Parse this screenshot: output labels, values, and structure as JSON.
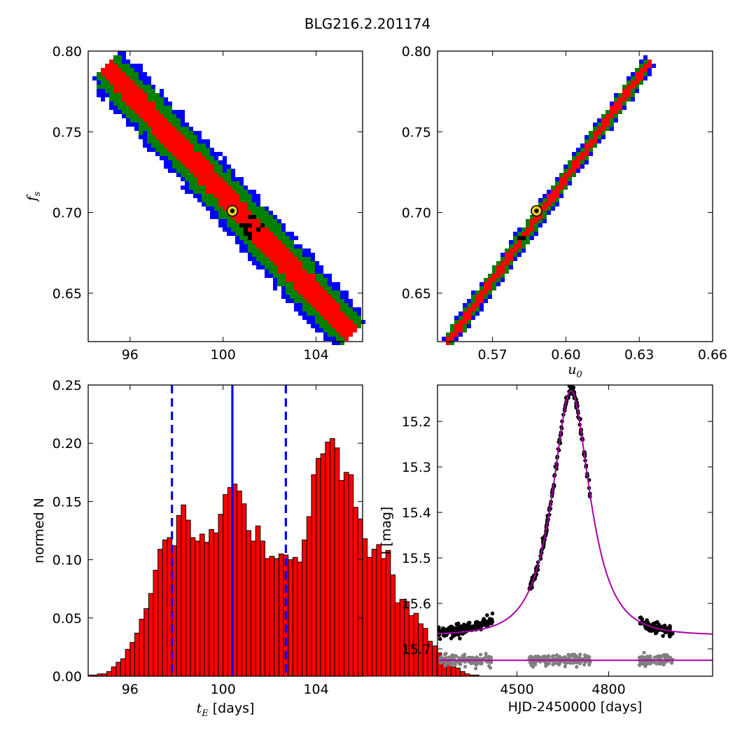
{
  "figure": {
    "title": "BLG216.2.201174"
  },
  "chart_data": [
    {
      "type": "heatmap",
      "panel": "top-left",
      "xlabel": "",
      "ylabel": "f_s",
      "xlim": [
        94.2,
        106.0
      ],
      "ylim": [
        0.62,
        0.8
      ],
      "xticks": [
        96,
        100,
        104
      ],
      "yticks": [
        0.65,
        0.7,
        0.75,
        0.8
      ],
      "ytick_labels": [
        "0.65",
        "0.70",
        "0.75",
        "0.80"
      ],
      "density_colors": [
        "#0000ff",
        "#008000",
        "#ff0000",
        "#000000"
      ],
      "density_levels": [
        "outer",
        "middle",
        "inner",
        "peak"
      ],
      "band": {
        "x_start": 95.0,
        "y_start": 0.79,
        "x_end": 105.5,
        "y_end": 0.625
      },
      "best_fit": {
        "x": 100.4,
        "y": 0.701
      }
    },
    {
      "type": "heatmap",
      "panel": "top-right",
      "xlabel": "u_0",
      "ylabel": "",
      "xlim": [
        0.5475,
        0.66
      ],
      "ylim": [
        0.62,
        0.8
      ],
      "xticks": [
        0.57,
        0.6,
        0.63,
        0.66
      ],
      "xtick_labels": [
        "0.57",
        "0.60",
        "0.63",
        "0.66"
      ],
      "yticks": [
        0.65,
        0.7,
        0.75,
        0.8
      ],
      "ytick_labels": [
        "0.65",
        "0.70",
        "0.75",
        "0.80"
      ],
      "density_colors": [
        "#0000ff",
        "#008000",
        "#ff0000",
        "#000000"
      ],
      "band": {
        "x_start": 0.552,
        "y_start": 0.62,
        "x_end": 0.634,
        "y_end": 0.793
      },
      "best_fit": {
        "x": 0.588,
        "y": 0.701
      }
    },
    {
      "type": "bar",
      "panel": "bottom-left",
      "xlabel": "t_E [days]",
      "ylabel": "normed N",
      "xlim": [
        94.2,
        106.0
      ],
      "ylim": [
        0.0,
        0.25
      ],
      "xticks": [
        96,
        100,
        104
      ],
      "yticks": [
        0.0,
        0.05,
        0.1,
        0.15,
        0.2,
        0.25
      ],
      "ytick_labels": [
        "0.00",
        "0.05",
        "0.10",
        "0.15",
        "0.20",
        "0.25"
      ],
      "bar_color": "#ff0000",
      "bin_start": 94.2,
      "bin_width": 0.2,
      "values": [
        0.001,
        0.001,
        0.002,
        0.002,
        0.004,
        0.008,
        0.012,
        0.015,
        0.023,
        0.029,
        0.037,
        0.049,
        0.058,
        0.071,
        0.091,
        0.109,
        0.117,
        0.119,
        0.112,
        0.138,
        0.147,
        0.134,
        0.119,
        0.116,
        0.122,
        0.115,
        0.126,
        0.123,
        0.139,
        0.156,
        0.162,
        0.165,
        0.159,
        0.148,
        0.125,
        0.116,
        0.129,
        0.116,
        0.101,
        0.103,
        0.101,
        0.105,
        0.104,
        0.1,
        0.102,
        0.098,
        0.117,
        0.137,
        0.173,
        0.187,
        0.191,
        0.201,
        0.204,
        0.196,
        0.168,
        0.175,
        0.173,
        0.145,
        0.135,
        0.118,
        0.102,
        0.109,
        0.113,
        0.101,
        0.108,
        0.087,
        0.063,
        0.066,
        0.064,
        0.052,
        0.054,
        0.045,
        0.041,
        0.03,
        0.026,
        0.02,
        0.016,
        0.014,
        0.008,
        0.007,
        0.004,
        0.002,
        0.001,
        0.001
      ],
      "median": 100.4,
      "lower": 97.8,
      "upper": 102.7,
      "line_color": "#0000ff"
    },
    {
      "type": "line",
      "panel": "bottom-right",
      "xlabel": "HJD-2450000 [days]",
      "ylabel": "I [mag]",
      "xlim": [
        4240,
        5140
      ],
      "ylim": [
        15.76,
        15.12
      ],
      "y_inverted": true,
      "xticks": [
        4500,
        4800
      ],
      "yticks": [
        15.2,
        15.3,
        15.4,
        15.5,
        15.6,
        15.7
      ],
      "model": {
        "t0": 4677,
        "u0": 0.588,
        "tE": 100.4,
        "fs": 0.701,
        "baseline": 15.67,
        "color": "#aa00aa"
      },
      "residual_baseline": 15.725,
      "observed_color": "#000000",
      "residual_color": "#808080",
      "observing_seasons": [
        [
          4240,
          4420
        ],
        [
          4540,
          4740
        ],
        [
          4900,
          5010
        ]
      ]
    }
  ]
}
